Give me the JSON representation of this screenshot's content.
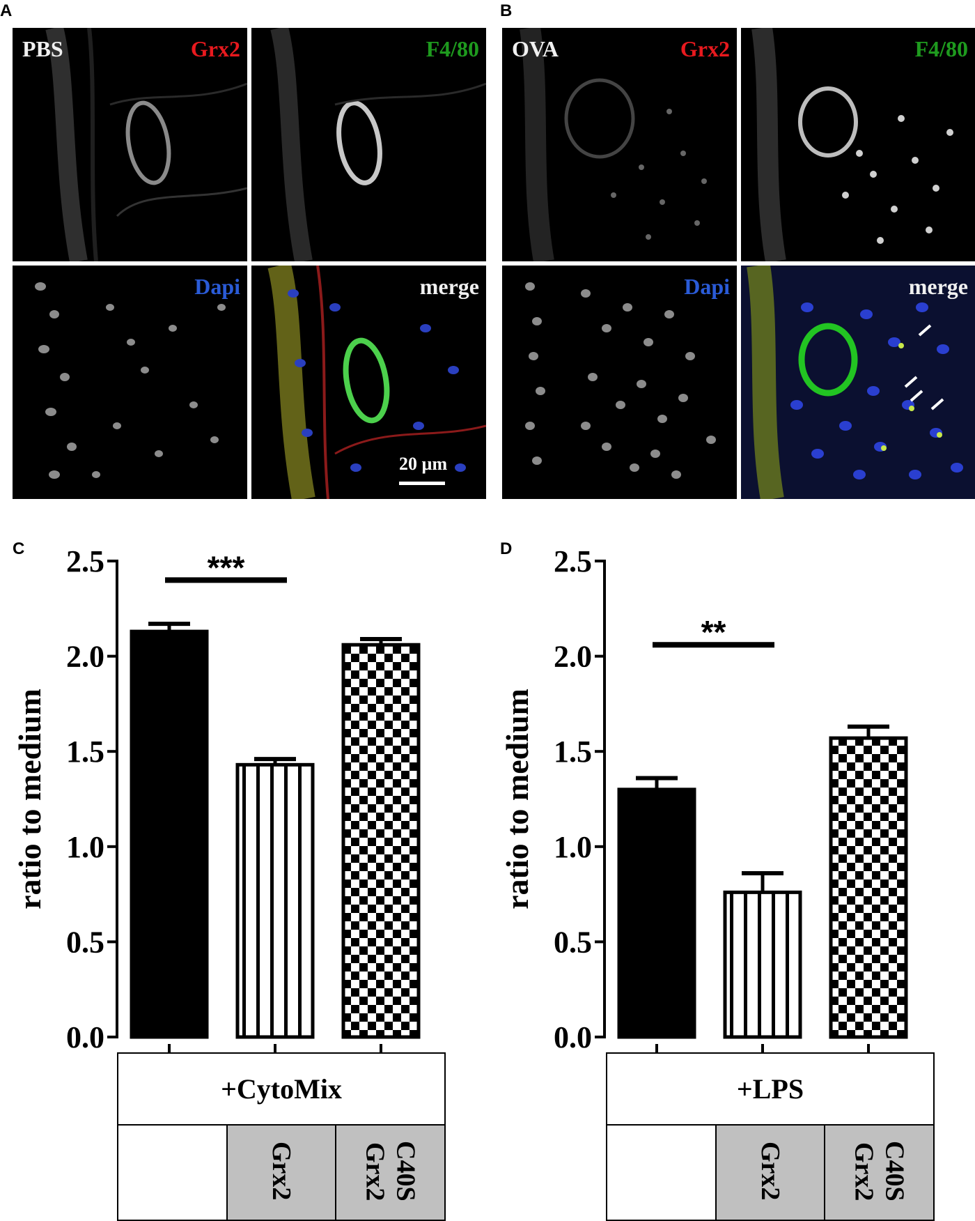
{
  "panels": {
    "A": {
      "letter": "A",
      "labels": {
        "condition": "PBS",
        "stain_red": "Grx2",
        "stain_green": "F4/80",
        "stain_blue": "Dapi",
        "merge": "merge"
      },
      "scale_bar": "20 µm"
    },
    "B": {
      "letter": "B",
      "labels": {
        "condition": "OVA",
        "stain_red": "Grx2",
        "stain_green": "F4/80",
        "stain_blue": "Dapi",
        "merge": "merge"
      }
    },
    "C": {
      "letter": "C"
    },
    "D": {
      "letter": "D"
    }
  },
  "colors": {
    "red_label": "#e8191e",
    "green_label": "#1e9a1e",
    "blue_label": "#2a5bd7",
    "white_label": "#f0f0f0",
    "table_fill": "#c0c0c0"
  },
  "chart_data": [
    {
      "panel": "C",
      "type": "bar",
      "ylabel": "ratio to medium",
      "ylim": [
        0,
        2.5
      ],
      "yticks": [
        "0.0",
        "0.5",
        "1.0",
        "1.5",
        "2.0",
        "2.5"
      ],
      "categories": [
        "",
        "Grx2",
        "Grx2 C40S"
      ],
      "values": [
        2.13,
        1.43,
        2.06
      ],
      "errors": [
        0.04,
        0.03,
        0.03
      ],
      "patterns": [
        "solid",
        "vertical-stripes",
        "checker"
      ],
      "significance": {
        "from": 0,
        "to": 1,
        "label": "***",
        "y": 2.4
      },
      "treatment": "+CytoMix",
      "conditions": [
        {
          "lines": [],
          "filled": false
        },
        {
          "lines": [
            "Grx2"
          ],
          "filled": true
        },
        {
          "lines": [
            "Grx2",
            "C40S"
          ],
          "filled": true
        }
      ]
    },
    {
      "panel": "D",
      "type": "bar",
      "ylabel": "ratio to medium",
      "ylim": [
        0,
        2.5
      ],
      "yticks": [
        "0.0",
        "0.5",
        "1.0",
        "1.5",
        "2.0",
        "2.5"
      ],
      "categories": [
        "",
        "Grx2",
        "Grx2 C40S"
      ],
      "values": [
        1.3,
        0.76,
        1.57
      ],
      "errors": [
        0.06,
        0.1,
        0.06
      ],
      "patterns": [
        "solid",
        "vertical-stripes",
        "checker"
      ],
      "significance": {
        "from": 0,
        "to": 1,
        "label": "**",
        "y": 2.06
      },
      "treatment": "+LPS",
      "conditions": [
        {
          "lines": [],
          "filled": false
        },
        {
          "lines": [
            "Grx2"
          ],
          "filled": true
        },
        {
          "lines": [
            "Grx2",
            "C40S"
          ],
          "filled": true
        }
      ]
    }
  ]
}
